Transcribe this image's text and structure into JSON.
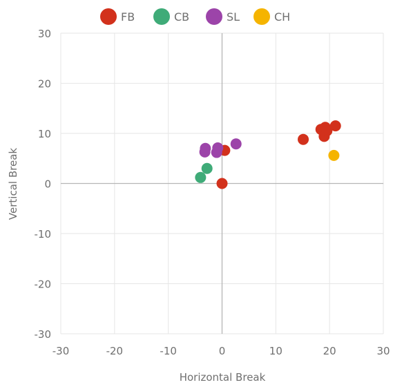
{
  "chart_data": {
    "type": "scatter",
    "title": "",
    "xlabel": "Horizontal Break",
    "ylabel": "Vertical Break",
    "xlim": [
      -30,
      30
    ],
    "ylim": [
      -30,
      30
    ],
    "x_ticks": [
      -30,
      -20,
      -10,
      0,
      10,
      20,
      30
    ],
    "y_ticks": [
      -30,
      -20,
      -10,
      0,
      10,
      20,
      30
    ],
    "grid": true,
    "legend_position": "top",
    "series": [
      {
        "name": "FB",
        "color": "#d2311c",
        "points": [
          {
            "x": 0,
            "y": 0
          },
          {
            "x": 0.5,
            "y": 6.6
          },
          {
            "x": 15.1,
            "y": 8.8
          },
          {
            "x": 18.4,
            "y": 10.8
          },
          {
            "x": 19.0,
            "y": 9.4
          },
          {
            "x": 19.2,
            "y": 11.2
          },
          {
            "x": 19.5,
            "y": 10.5
          },
          {
            "x": 21.1,
            "y": 11.5
          }
        ]
      },
      {
        "name": "CB",
        "color": "#3fab78",
        "points": [
          {
            "x": -4.0,
            "y": 1.2
          },
          {
            "x": -2.8,
            "y": 3.0
          }
        ]
      },
      {
        "name": "SL",
        "color": "#9c44a9",
        "points": [
          {
            "x": -3.1,
            "y": 7.0
          },
          {
            "x": -3.2,
            "y": 6.3
          },
          {
            "x": -0.8,
            "y": 7.1
          },
          {
            "x": -1.0,
            "y": 6.2
          },
          {
            "x": 2.6,
            "y": 7.9
          }
        ]
      },
      {
        "name": "CH",
        "color": "#f5b400",
        "points": [
          {
            "x": 20.8,
            "y": 5.6
          }
        ]
      }
    ]
  }
}
